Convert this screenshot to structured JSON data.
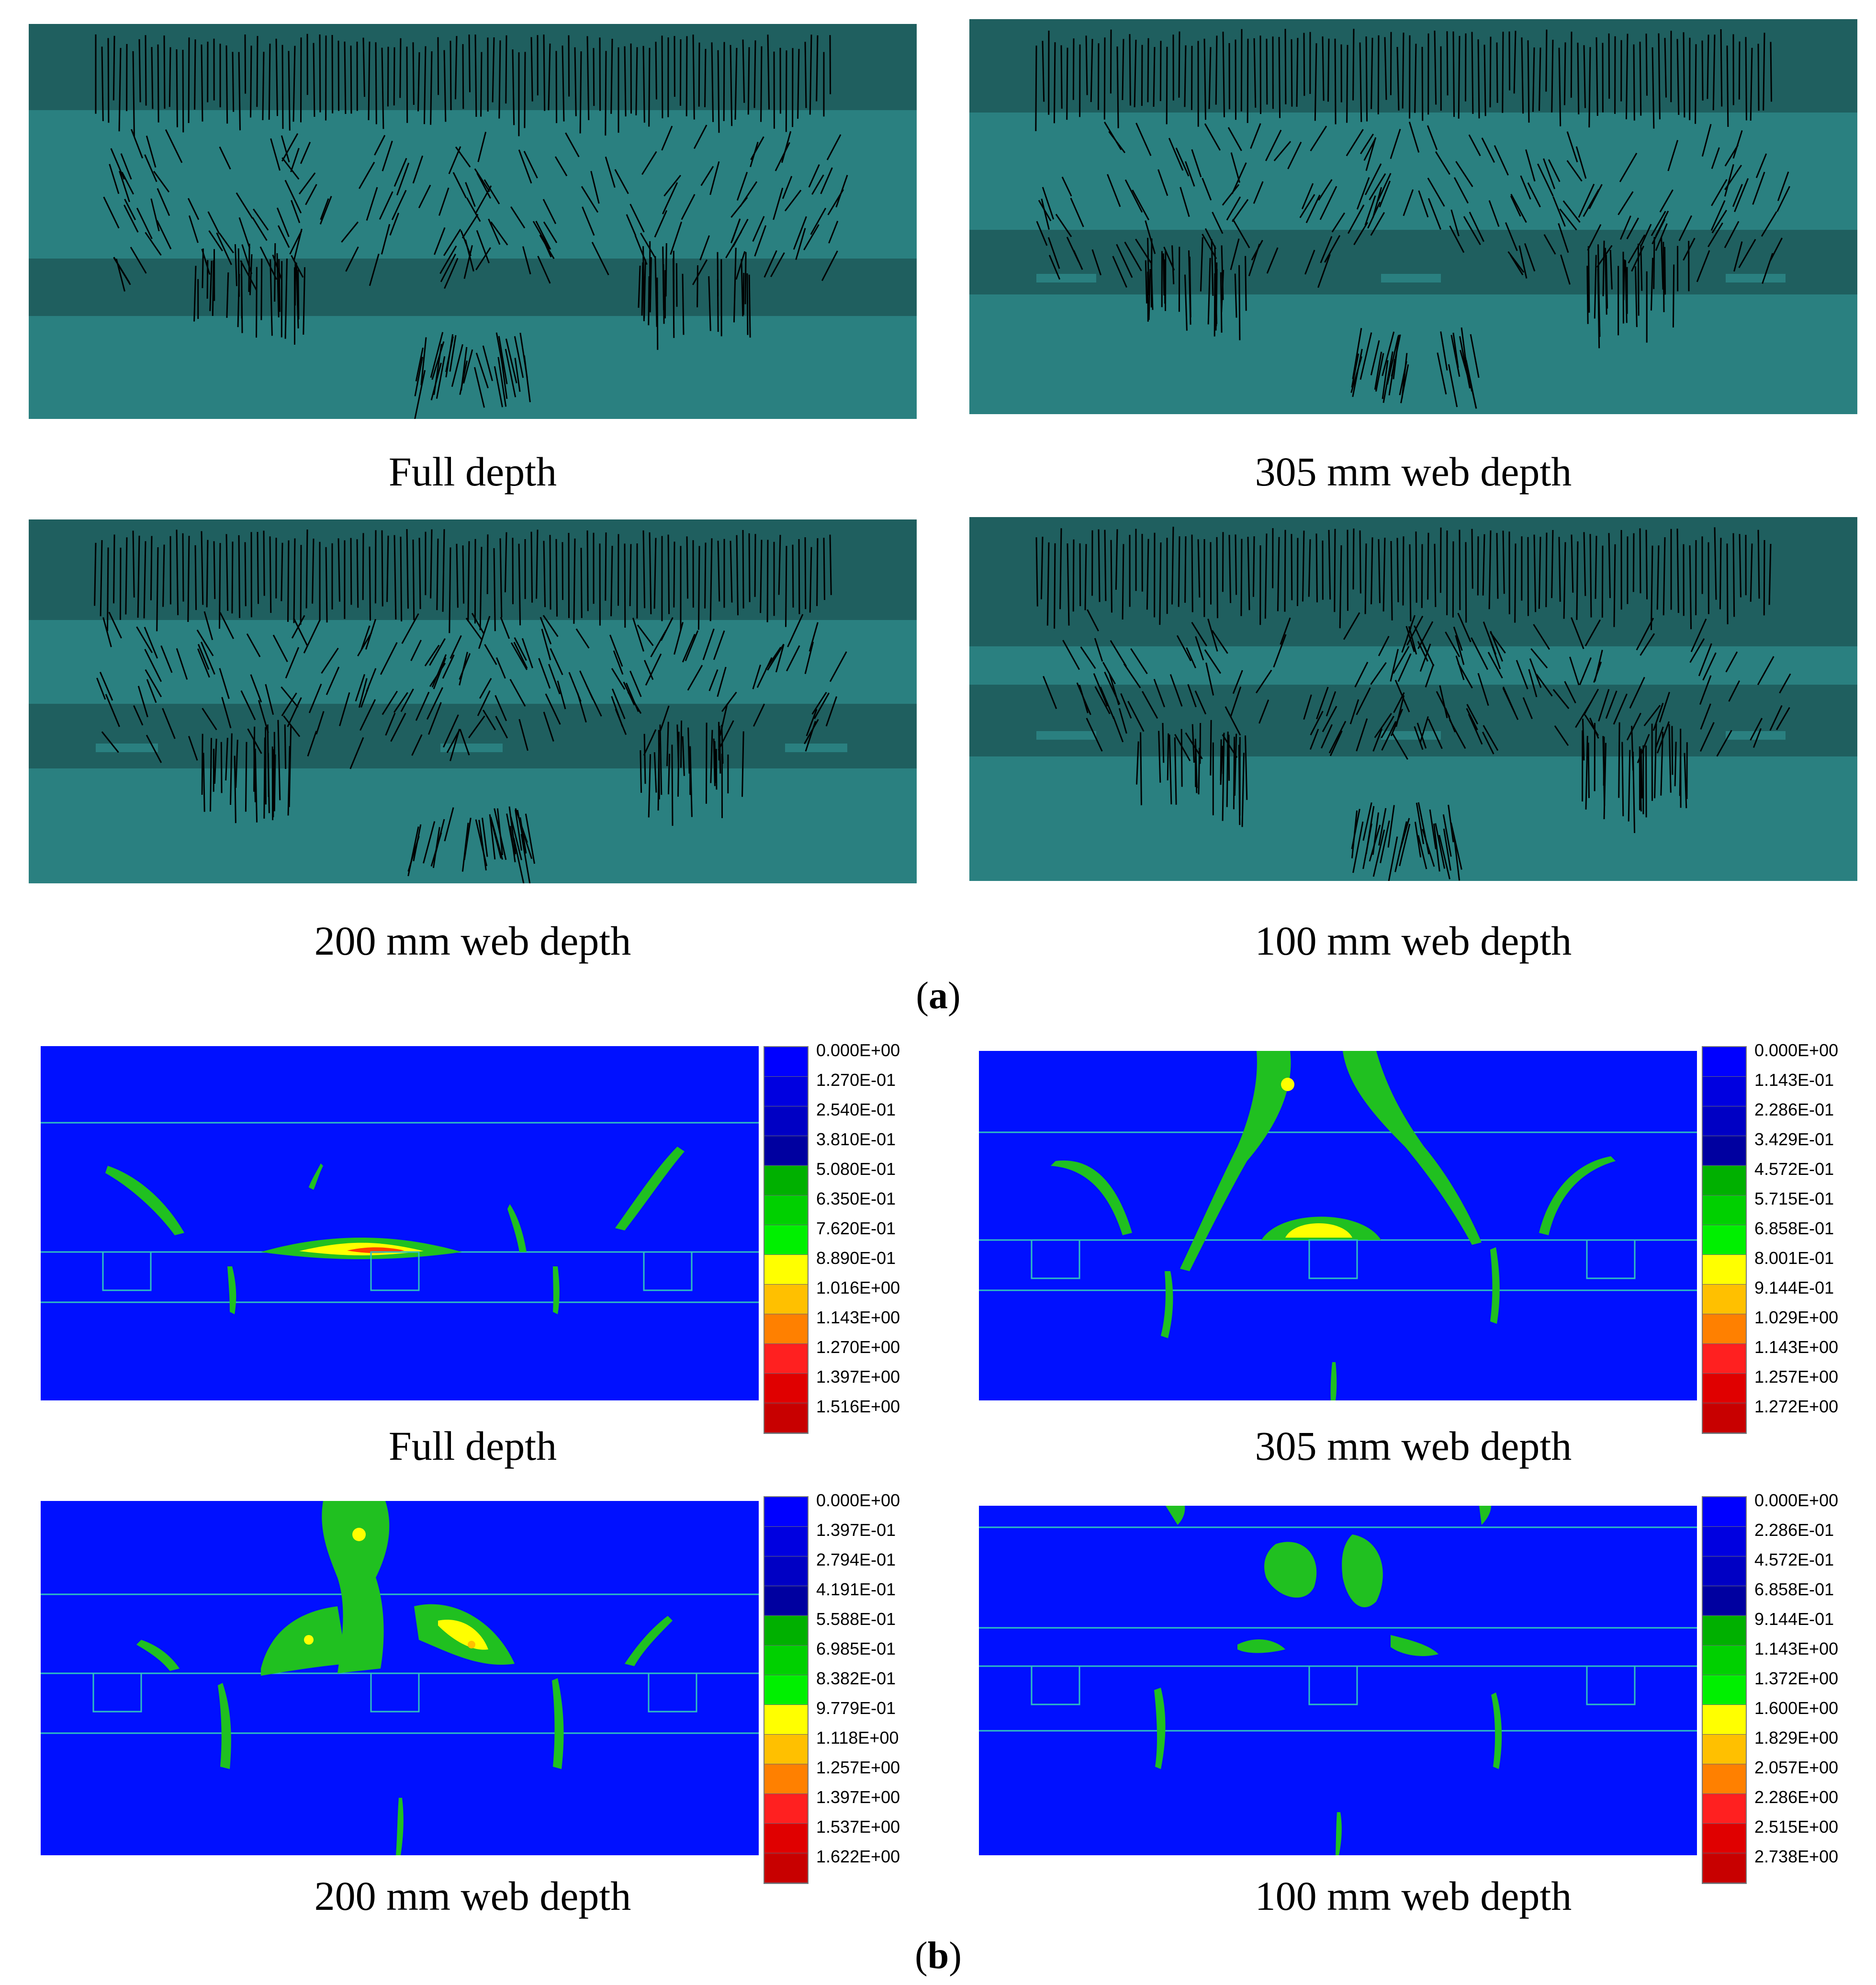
{
  "figure": {
    "part_a_label": "(a)",
    "part_b_label": "(b)",
    "part_label_letters": {
      "a": "a",
      "b": "b"
    }
  },
  "crack_panels": [
    {
      "caption": "Full depth"
    },
    {
      "caption": "305 mm web depth"
    },
    {
      "caption": "200 mm web depth"
    },
    {
      "caption": "100 mm web depth"
    }
  ],
  "contour_panels": [
    {
      "caption": "Full depth",
      "legend": [
        "0.000E+00",
        "1.270E-01",
        "2.540E-01",
        "3.810E-01",
        "5.080E-01",
        "6.350E-01",
        "7.620E-01",
        "8.890E-01",
        "1.016E+00",
        "1.143E+00",
        "1.270E+00",
        "1.397E+00",
        "1.516E+00"
      ]
    },
    {
      "caption": "305 mm web depth",
      "legend": [
        "0.000E+00",
        "1.143E-01",
        "2.286E-01",
        "3.429E-01",
        "4.572E-01",
        "5.715E-01",
        "6.858E-01",
        "8.001E-01",
        "9.144E-01",
        "1.029E+00",
        "1.143E+00",
        "1.257E+00",
        "1.272E+00"
      ]
    },
    {
      "caption": "200 mm web depth",
      "legend": [
        "0.000E+00",
        "1.397E-01",
        "2.794E-01",
        "4.191E-01",
        "5.588E-01",
        "6.985E-01",
        "8.382E-01",
        "9.779E-01",
        "1.118E+00",
        "1.257E+00",
        "1.397E+00",
        "1.537E+00",
        "1.622E+00"
      ]
    },
    {
      "caption": "100 mm web depth",
      "legend": [
        "0.000E+00",
        "2.286E-01",
        "4.572E-01",
        "6.858E-01",
        "9.144E-01",
        "1.143E+00",
        "1.372E+00",
        "1.600E+00",
        "1.829E+00",
        "2.057E+00",
        "2.286E+00",
        "2.515E+00",
        "2.738E+00"
      ]
    }
  ],
  "legend_colors": [
    "#0000ff",
    "#0000e0",
    "#0000c4",
    "#0000a0",
    "#00b000",
    "#00d000",
    "#00f000",
    "#ffff00",
    "#ffc000",
    "#ff8000",
    "#ff2020",
    "#e00000",
    "#c80000"
  ],
  "colors": {
    "crack_band_dark": "#1f5f5f",
    "crack_base": "#2a8080",
    "contour_blue": "#0010ff",
    "contour_line": "#30c0c0"
  }
}
